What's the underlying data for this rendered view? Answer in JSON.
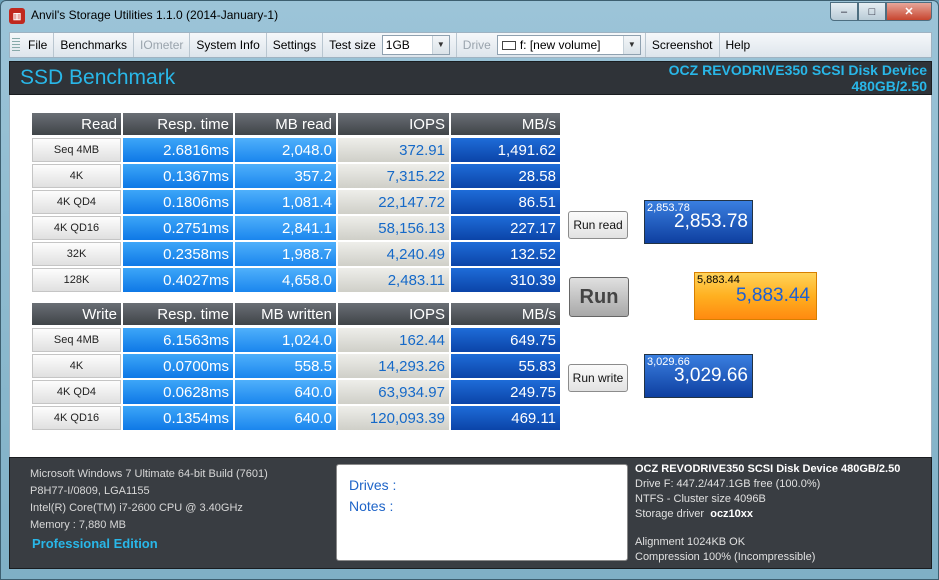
{
  "window": {
    "title": "Anvil's Storage Utilities 1.1.0 (2014-January-1)",
    "min_glyph": "–",
    "max_glyph": "□",
    "close_glyph": "✕"
  },
  "menu": {
    "file": "File",
    "benchmarks": "Benchmarks",
    "iometer": "IOmeter",
    "system_info": "System Info",
    "settings": "Settings",
    "test_size_label": "Test size",
    "test_size_value": "1GB",
    "drive_label": "Drive",
    "drive_value": "f: [new volume]",
    "screenshot": "Screenshot",
    "help": "Help"
  },
  "header": {
    "title": "SSD Benchmark",
    "device": "OCZ REVODRIVE350 SCSI Disk Device",
    "size": "480GB/2.50"
  },
  "read_table": {
    "headers": [
      "Read",
      "Resp. time",
      "MB read",
      "IOPS",
      "MB/s"
    ],
    "rows": [
      {
        "label": "Seq 4MB",
        "resp": "2.6816ms",
        "mb": "2,048.0",
        "iops": "372.91",
        "mbs": "1,491.62"
      },
      {
        "label": "4K",
        "resp": "0.1367ms",
        "mb": "357.2",
        "iops": "7,315.22",
        "mbs": "28.58"
      },
      {
        "label": "4K QD4",
        "resp": "0.1806ms",
        "mb": "1,081.4",
        "iops": "22,147.72",
        "mbs": "86.51"
      },
      {
        "label": "4K QD16",
        "resp": "0.2751ms",
        "mb": "2,841.1",
        "iops": "58,156.13",
        "mbs": "227.17"
      },
      {
        "label": "32K",
        "resp": "0.2358ms",
        "mb": "1,988.7",
        "iops": "4,240.49",
        "mbs": "132.52"
      },
      {
        "label": "128K",
        "resp": "0.4027ms",
        "mb": "4,658.0",
        "iops": "2,483.11",
        "mbs": "310.39"
      }
    ]
  },
  "write_table": {
    "headers": [
      "Write",
      "Resp. time",
      "MB written",
      "IOPS",
      "MB/s"
    ],
    "rows": [
      {
        "label": "Seq 4MB",
        "resp": "6.1563ms",
        "mb": "1,024.0",
        "iops": "162.44",
        "mbs": "649.75"
      },
      {
        "label": "4K",
        "resp": "0.0700ms",
        "mb": "558.5",
        "iops": "14,293.26",
        "mbs": "55.83"
      },
      {
        "label": "4K QD4",
        "resp": "0.0628ms",
        "mb": "640.0",
        "iops": "63,934.97",
        "mbs": "249.75"
      },
      {
        "label": "4K QD16",
        "resp": "0.1354ms",
        "mb": "640.0",
        "iops": "120,093.39",
        "mbs": "469.11"
      }
    ]
  },
  "buttons": {
    "run_read": "Run read",
    "run": "Run",
    "run_write": "Run write"
  },
  "scores": {
    "read_small": "2,853.78",
    "read_big": "2,853.78",
    "total_small": "5,883.44",
    "total_big": "5,883.44",
    "write_small": "3,029.66",
    "write_big": "3,029.66"
  },
  "system": {
    "os": "Microsoft Windows 7 Ultimate  64-bit Build (7601)",
    "board": "P8H77-I/0809, LGA1155",
    "cpu": "Intel(R) Core(TM) i7-2600 CPU @ 3.40GHz",
    "memory": "Memory : 7,880 MB",
    "edition": "Professional Edition"
  },
  "notes": {
    "drives": "Drives :",
    "notes": "Notes :"
  },
  "device_info": {
    "title": "OCZ REVODRIVE350 SCSI Disk Device 480GB/2.50",
    "drive": "Drive F: 447.2/447.1GB free (100.0%)",
    "ntfs": "NTFS - Cluster size 4096B",
    "driver_label": "Storage driver",
    "driver_value": "ocz10xx",
    "alignment": "Alignment 1024KB OK",
    "compression": "Compression 100% (Incompressible)"
  }
}
